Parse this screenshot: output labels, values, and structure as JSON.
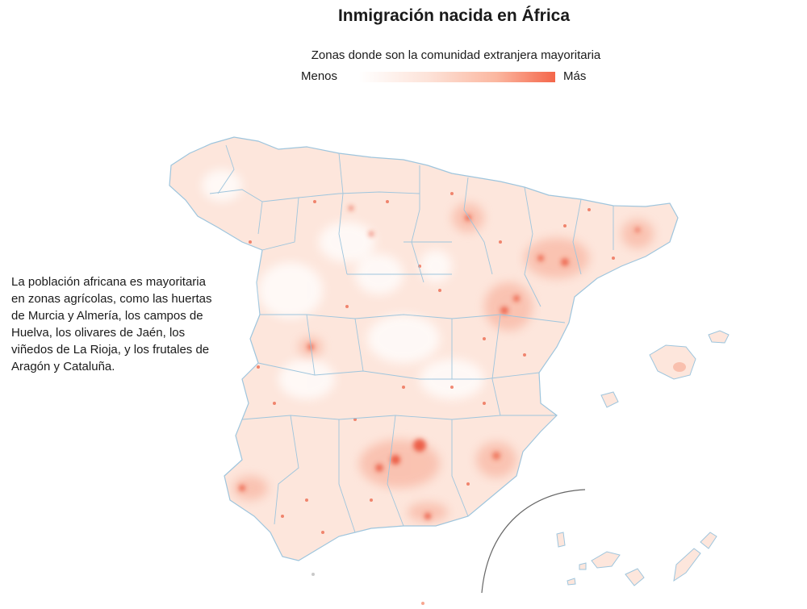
{
  "title": "Inmigración nacida en África",
  "legend": {
    "subtitle": "Zonas donde son la comunidad extranjera mayoritaria",
    "low_label": "Menos",
    "high_label": "Más",
    "colors": [
      "#ffffff",
      "#fde3d9",
      "#fbb7a0",
      "#f4664a"
    ]
  },
  "annotation": "La población africana es mayoritaria en zonas agrícolas, como las huertas de Murcia y Almería, los campos de Huelva, los olivares de Jaén, los viñedos de La Rioja, y los frutales de Aragón y Cataluña.",
  "colors": {
    "land_fill": "#fde6dc",
    "border": "#9ec5dd",
    "hotspot": "#e8432a",
    "light_area": "#ffffff"
  }
}
